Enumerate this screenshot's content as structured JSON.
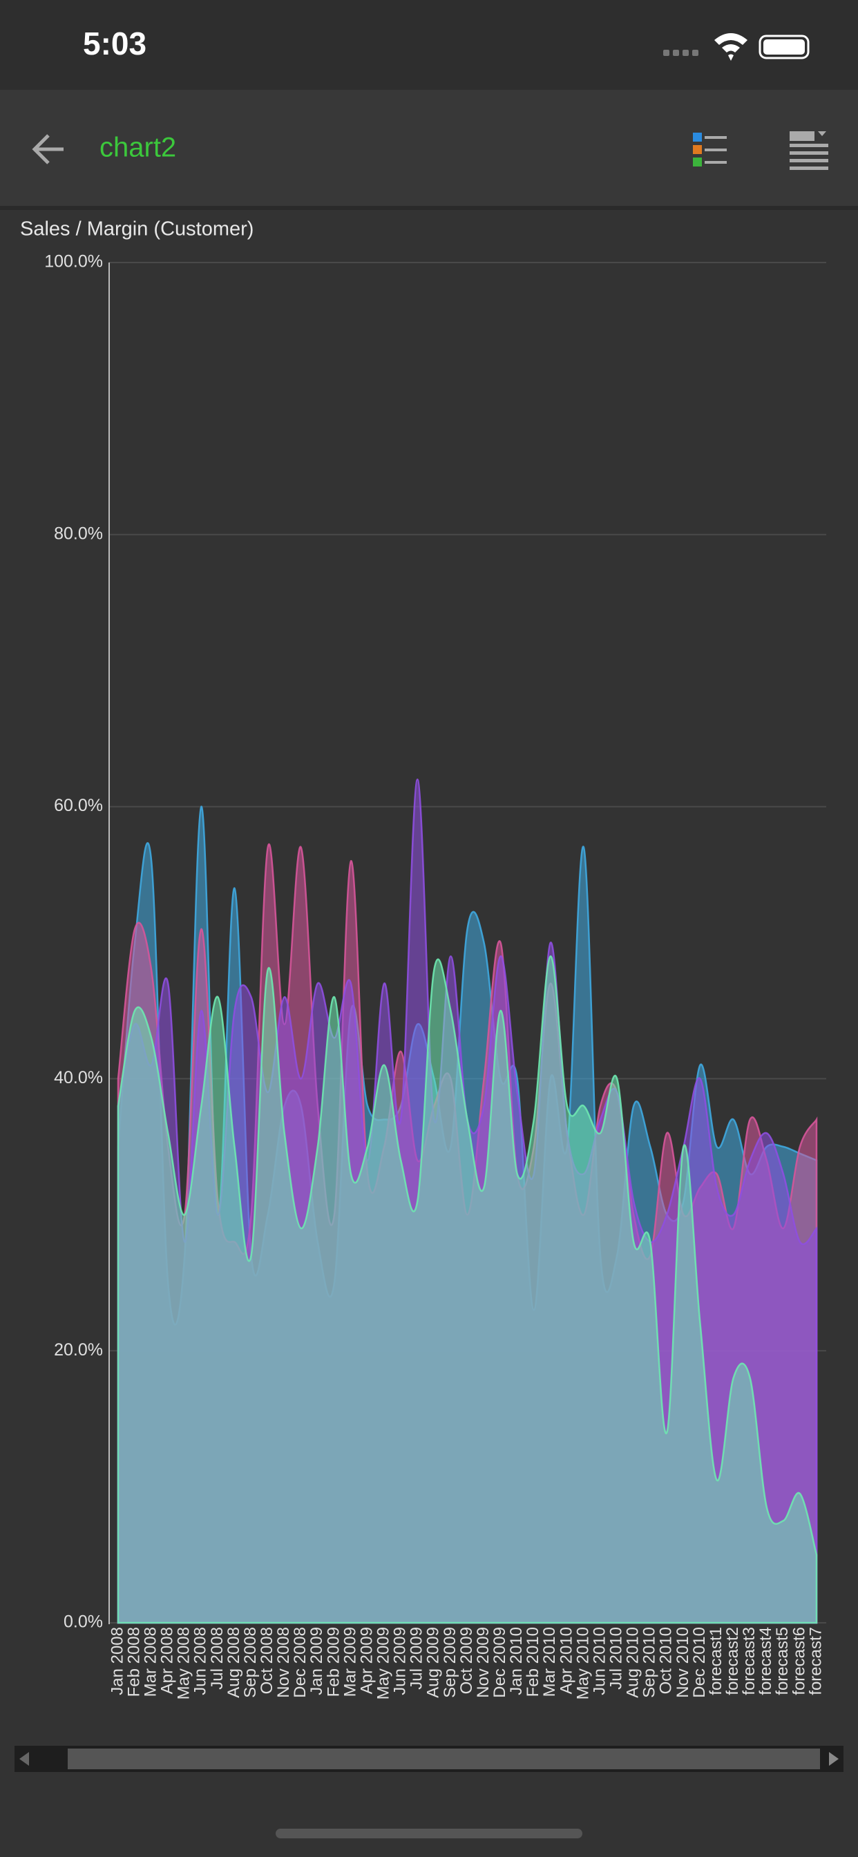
{
  "status_bar": {
    "time": "5:03"
  },
  "nav": {
    "title": "chart2"
  },
  "chart_data": {
    "type": "area",
    "title": "Sales / Margin (Customer)",
    "categories": [
      "Jan 2008",
      "Feb 2008",
      "Mar 2008",
      "Apr 2008",
      "May 2008",
      "Jun 2008",
      "Jul 2008",
      "Aug 2008",
      "Sep 2008",
      "Oct 2008",
      "Nov 2008",
      "Dec 2008",
      "Jan 2009",
      "Feb 2009",
      "Mar 2009",
      "Apr 2009",
      "May 2009",
      "Jun 2009",
      "Jul 2009",
      "Aug 2009",
      "Sep 2009",
      "Oct 2009",
      "Nov 2009",
      "Dec 2009",
      "Jan 2010",
      "Feb 2010",
      "Mar 2010",
      "Apr 2010",
      "May 2010",
      "Jun 2010",
      "Jul 2010",
      "Aug 2010",
      "Sep 2010",
      "Oct 2010",
      "Nov 2010",
      "Dec 2010",
      "forecast1",
      "forecast2",
      "forecast3",
      "forecast4",
      "forecast5",
      "forecast6",
      "forecast7"
    ],
    "series": [
      {
        "color": "#3fa9e0",
        "values": [
          35,
          50,
          56,
          25,
          27,
          60,
          30,
          54,
          27,
          30,
          38,
          38,
          28,
          25,
          45,
          38,
          37,
          38,
          44,
          40,
          35,
          51,
          50,
          40,
          40,
          23,
          40,
          35,
          57,
          27,
          27,
          38,
          35,
          30,
          31,
          41,
          35,
          37,
          33,
          35,
          35,
          34.5,
          34
        ]
      },
      {
        "color": "#d6559a",
        "values": [
          40,
          51,
          48,
          35,
          30,
          51,
          31,
          28,
          30,
          57,
          44,
          57,
          38,
          30,
          56,
          33,
          35,
          42,
          34,
          38,
          40,
          30,
          40,
          50,
          33,
          35,
          47,
          36,
          30,
          38,
          39,
          30,
          27,
          36,
          30,
          32,
          33,
          29,
          37,
          34,
          29,
          35,
          37
        ]
      },
      {
        "color": "#8e4fe0",
        "values": [
          38,
          44,
          41,
          47,
          28,
          45,
          30,
          45,
          46,
          39,
          46,
          40,
          47,
          43,
          47,
          34,
          47,
          37,
          62,
          37,
          49,
          37,
          38,
          49,
          39,
          33,
          50,
          36,
          33,
          37,
          39,
          31,
          28,
          30,
          35,
          40,
          32,
          30,
          34,
          36,
          33,
          28,
          29
        ]
      },
      {
        "color": "#6ee8b0",
        "values": [
          38,
          45,
          43,
          36,
          30,
          38,
          46,
          35,
          27,
          48,
          36,
          29,
          35,
          46,
          33,
          35,
          41,
          34,
          31,
          48,
          45,
          37,
          32,
          45,
          33,
          37,
          49,
          38,
          38,
          36,
          40,
          28,
          28,
          14,
          35,
          22,
          10.5,
          18,
          18,
          8.5,
          7.5,
          9.5,
          5
        ]
      }
    ],
    "ylim": [
      0,
      100
    ],
    "yticks": [
      {
        "value": 0,
        "label": "0.0%"
      },
      {
        "value": 20,
        "label": "20.0%"
      },
      {
        "value": 40,
        "label": "40.0%"
      },
      {
        "value": 60,
        "label": "60.0%"
      },
      {
        "value": 80,
        "label": "80.0%"
      },
      {
        "value": 100,
        "label": "100.0%"
      }
    ],
    "grid": true
  }
}
